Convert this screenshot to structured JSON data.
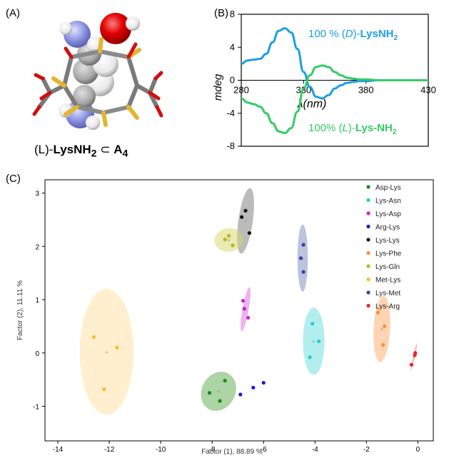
{
  "panel_labels": {
    "a": "(A)",
    "b": "(B)",
    "c": "(C)"
  },
  "molecule": {
    "caption_prefix": "(L)-",
    "caption_name": "LysNH",
    "caption_sub": "2",
    "caption_symbol": "⊂",
    "caption_host": "A",
    "caption_host_sub": "4"
  },
  "chart_data": [
    {
      "type": "line",
      "ylabel": "mdeg",
      "xlabel": "λ(nm)",
      "xlim": [
        280,
        430
      ],
      "ylim": [
        -8,
        8
      ],
      "xticks": [
        280,
        330,
        380,
        430
      ],
      "yticks": [
        8,
        4,
        0,
        -4,
        -8
      ],
      "series": [
        {
          "name": "100 % (D)-LysNH2",
          "label_parts": [
            "100 % (",
            "D",
            ")-",
            "LysNH",
            "2"
          ],
          "color": "#1a9ee5",
          "x": [
            280,
            285,
            290,
            295,
            300,
            305,
            310,
            315,
            320,
            325,
            330,
            335,
            340,
            345,
            350,
            355,
            360,
            365,
            370,
            375,
            380,
            390,
            400,
            410,
            420,
            430
          ],
          "y": [
            2.0,
            2.4,
            2.5,
            2.6,
            3.2,
            4.6,
            6.0,
            6.3,
            5.8,
            3.8,
            1.0,
            -0.8,
            -2.0,
            -2.2,
            -1.8,
            -1.0,
            -0.6,
            -0.3,
            -0.2,
            -0.1,
            -0.1,
            0.0,
            0.0,
            0.0,
            0.0,
            0.0
          ]
        },
        {
          "name": "100% (L)-Lys-NH2",
          "label_parts": [
            "100% (",
            "L",
            ")-",
            "Lys-NH",
            "2"
          ],
          "color": "#33cc66",
          "x": [
            280,
            285,
            290,
            295,
            300,
            305,
            310,
            315,
            320,
            325,
            330,
            335,
            340,
            345,
            350,
            355,
            360,
            365,
            370,
            375,
            380,
            390,
            400,
            410,
            420,
            430
          ],
          "y": [
            -2.2,
            -2.7,
            -2.9,
            -3.2,
            -4.0,
            -5.2,
            -6.2,
            -6.4,
            -5.8,
            -3.8,
            -1.0,
            0.6,
            1.6,
            1.8,
            1.6,
            1.0,
            0.6,
            0.3,
            0.2,
            0.1,
            0.1,
            0.0,
            0.0,
            0.0,
            0.0,
            0.0
          ]
        }
      ]
    },
    {
      "type": "scatter",
      "xlabel": "Factor (1), 88.89 %",
      "ylabel": "Factor (2), 11.11 %",
      "xlim": [
        -14.5,
        0.6
      ],
      "ylim": [
        -1.65,
        3.25
      ],
      "xticks": [
        -14,
        -12,
        -10,
        -8,
        -6,
        -4,
        -2,
        0
      ],
      "yticks": [
        3,
        2,
        1,
        0,
        -1
      ],
      "legend_position": "top-right",
      "series": [
        {
          "name": "Asp-Lys",
          "color": "#1a8a1a",
          "ellipse_color": "#5aaa4a",
          "points": [
            [
              -8.1,
              -0.75
            ],
            [
              -7.7,
              -0.9
            ],
            [
              -7.5,
              -0.52
            ]
          ],
          "ellipse": {
            "cx": -7.75,
            "cy": -0.72,
            "rx": 0.65,
            "ry": 0.38,
            "angle": 28
          }
        },
        {
          "name": "Lys-Asn",
          "color": "#22cccc",
          "ellipse_color": "#66dddd",
          "points": [
            [
              -4.1,
              0.55
            ],
            [
              -3.85,
              0.22
            ],
            [
              -4.2,
              -0.08
            ]
          ],
          "ellipse": {
            "cx": -4.05,
            "cy": 0.22,
            "rx": 0.42,
            "ry": 0.63,
            "angle": 0
          }
        },
        {
          "name": "Lys-Asp",
          "color": "#cc22cc",
          "ellipse_color": "#dd66dd",
          "points": [
            [
              -6.8,
              0.98
            ],
            [
              -6.75,
              0.83
            ],
            [
              -6.6,
              0.66
            ]
          ],
          "ellipse": {
            "cx": -6.7,
            "cy": 0.82,
            "rx": 0.12,
            "ry": 0.42,
            "angle": 10
          }
        },
        {
          "name": "Arg-Lys",
          "color": "#1a1acc",
          "ellipse_color": "#6666dd",
          "points": [
            [
              -6.9,
              -0.78
            ],
            [
              -6.4,
              -0.65
            ],
            [
              -6.0,
              -0.56
            ]
          ],
          "ellipse": null
        },
        {
          "name": "Lys-Lys",
          "color": "#111111",
          "ellipse_color": "#777777",
          "points": [
            [
              -6.85,
              2.55
            ],
            [
              -6.7,
              2.67
            ],
            [
              -6.55,
              2.25
            ]
          ],
          "ellipse": {
            "cx": -6.7,
            "cy": 2.48,
            "rx": 0.28,
            "ry": 0.62,
            "angle": 8
          }
        },
        {
          "name": "Lys-Phe",
          "color": "#ff8c33",
          "ellipse_color": "#ffaa66",
          "points": [
            [
              -1.55,
              0.76
            ],
            [
              -1.3,
              0.5
            ],
            [
              -1.35,
              0.15
            ]
          ],
          "ellipse": {
            "cx": -1.4,
            "cy": 0.45,
            "rx": 0.32,
            "ry": 0.62,
            "angle": 3
          }
        },
        {
          "name": "Lys-Gln",
          "color": "#b8b81a",
          "ellipse_color": "#d6d666",
          "points": [
            [
              -7.5,
              2.13
            ],
            [
              -7.35,
              2.2
            ],
            [
              -7.2,
              2.02
            ]
          ],
          "ellipse": {
            "cx": -7.35,
            "cy": 2.12,
            "rx": 0.56,
            "ry": 0.22,
            "angle": -6
          }
        },
        {
          "name": "Met-Lys",
          "color": "#ffbb22",
          "ellipse_color": "#ffe0a0",
          "points": [
            [
              -12.6,
              0.3
            ],
            [
              -11.7,
              0.1
            ],
            [
              -12.2,
              -0.68
            ]
          ],
          "ellipse": {
            "cx": -12.1,
            "cy": 0.02,
            "rx": 1.05,
            "ry": 1.18,
            "angle": 0
          }
        },
        {
          "name": "Lys-Met",
          "color": "#3344aa",
          "ellipse_color": "#7788bb",
          "points": [
            [
              -4.45,
              2.03
            ],
            [
              -4.55,
              1.78
            ],
            [
              -4.45,
              1.52
            ]
          ],
          "ellipse": {
            "cx": -4.48,
            "cy": 1.78,
            "rx": 0.2,
            "ry": 0.63,
            "angle": 0
          }
        },
        {
          "name": "Lys-Arg",
          "color": "#ee2222",
          "ellipse_color": "#f08080",
          "points": [
            [
              -0.1,
              0.0
            ],
            [
              -0.12,
              -0.04
            ],
            [
              -0.25,
              -0.22
            ]
          ],
          "ellipse": {
            "cx": -0.15,
            "cy": -0.07,
            "rx": 0.04,
            "ry": 0.26,
            "angle": 12
          }
        }
      ]
    }
  ]
}
